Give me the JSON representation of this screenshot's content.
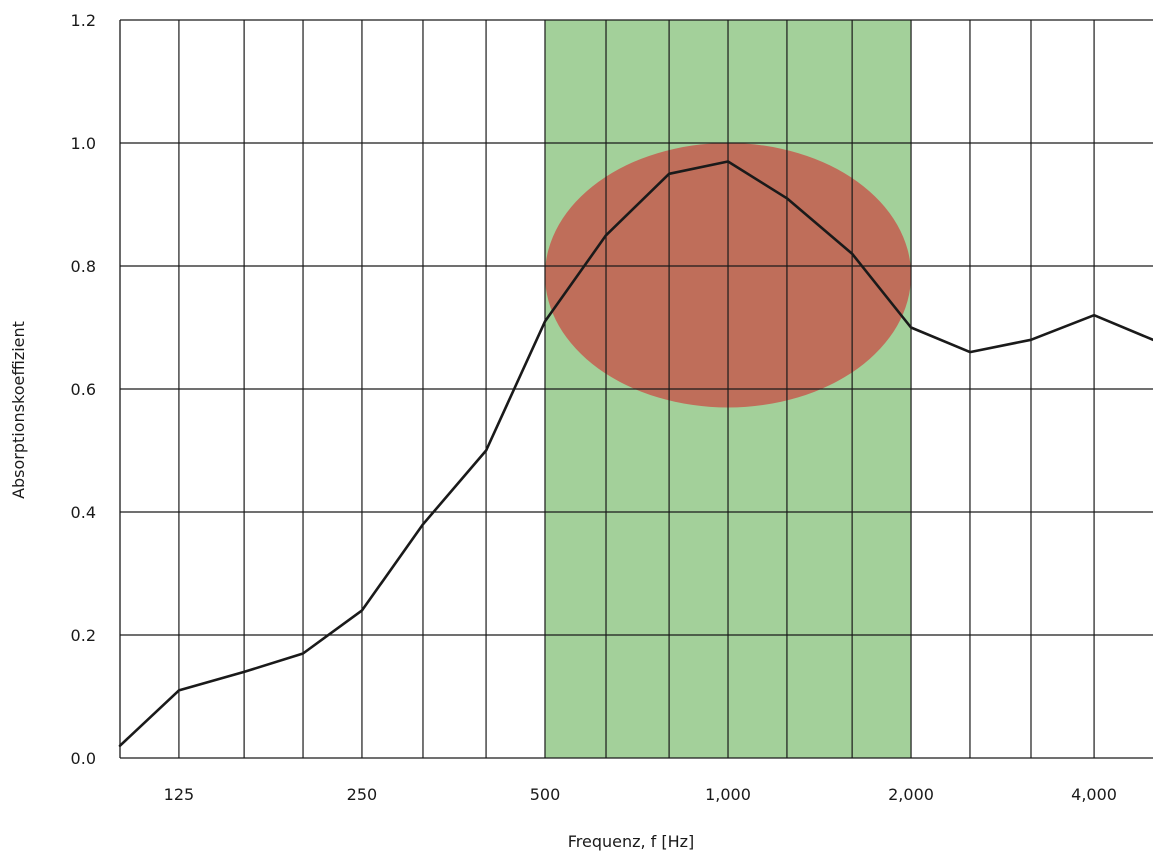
{
  "chart_data": {
    "type": "line",
    "title": "",
    "xlabel": "Frequenz, f [Hz]",
    "ylabel": "Absorptionskoeffizient",
    "x_scale": "log2",
    "xlim": [
      100,
      5000
    ],
    "ylim": [
      0,
      1.2
    ],
    "x_ticks": [
      {
        "value": 125,
        "label": "125"
      },
      {
        "value": 250,
        "label": "250"
      },
      {
        "value": 500,
        "label": "500"
      },
      {
        "value": 1000,
        "label": "1,000"
      },
      {
        "value": 2000,
        "label": "2,000"
      },
      {
        "value": 4000,
        "label": "4,000"
      }
    ],
    "y_ticks": [
      {
        "value": 0.0,
        "label": "0.0"
      },
      {
        "value": 0.2,
        "label": "0.2"
      },
      {
        "value": 0.4,
        "label": "0.4"
      },
      {
        "value": 0.6,
        "label": "0.6"
      },
      {
        "value": 0.8,
        "label": "0.8"
      },
      {
        "value": 1.0,
        "label": "1.0"
      },
      {
        "value": 1.2,
        "label": "1.2"
      }
    ],
    "grid": true,
    "grid_x_values": [
      125,
      160,
      200,
      250,
      315,
      400,
      500,
      630,
      800,
      1000,
      1250,
      1600,
      2000,
      2500,
      3150,
      4000
    ],
    "series": [
      {
        "color": "#1a1a1a",
        "x": [
          100,
          125,
          160,
          200,
          250,
          315,
          400,
          500,
          630,
          800,
          1000,
          1250,
          1600,
          2000,
          2500,
          3150,
          4000,
          5000
        ],
        "values": [
          0.02,
          0.11,
          0.14,
          0.17,
          0.24,
          0.38,
          0.5,
          0.71,
          0.85,
          0.95,
          0.97,
          0.91,
          0.82,
          0.7,
          0.66,
          0.68,
          0.72,
          0.68
        ]
      }
    ],
    "highlight_band": {
      "x_from": 500,
      "x_to": 2000,
      "color": "#a3d09a"
    },
    "highlight_ellipse": {
      "x_from": 500,
      "x_to": 2000,
      "y_from": 0.57,
      "y_to": 1.0,
      "color": "#bf6e5a"
    }
  }
}
